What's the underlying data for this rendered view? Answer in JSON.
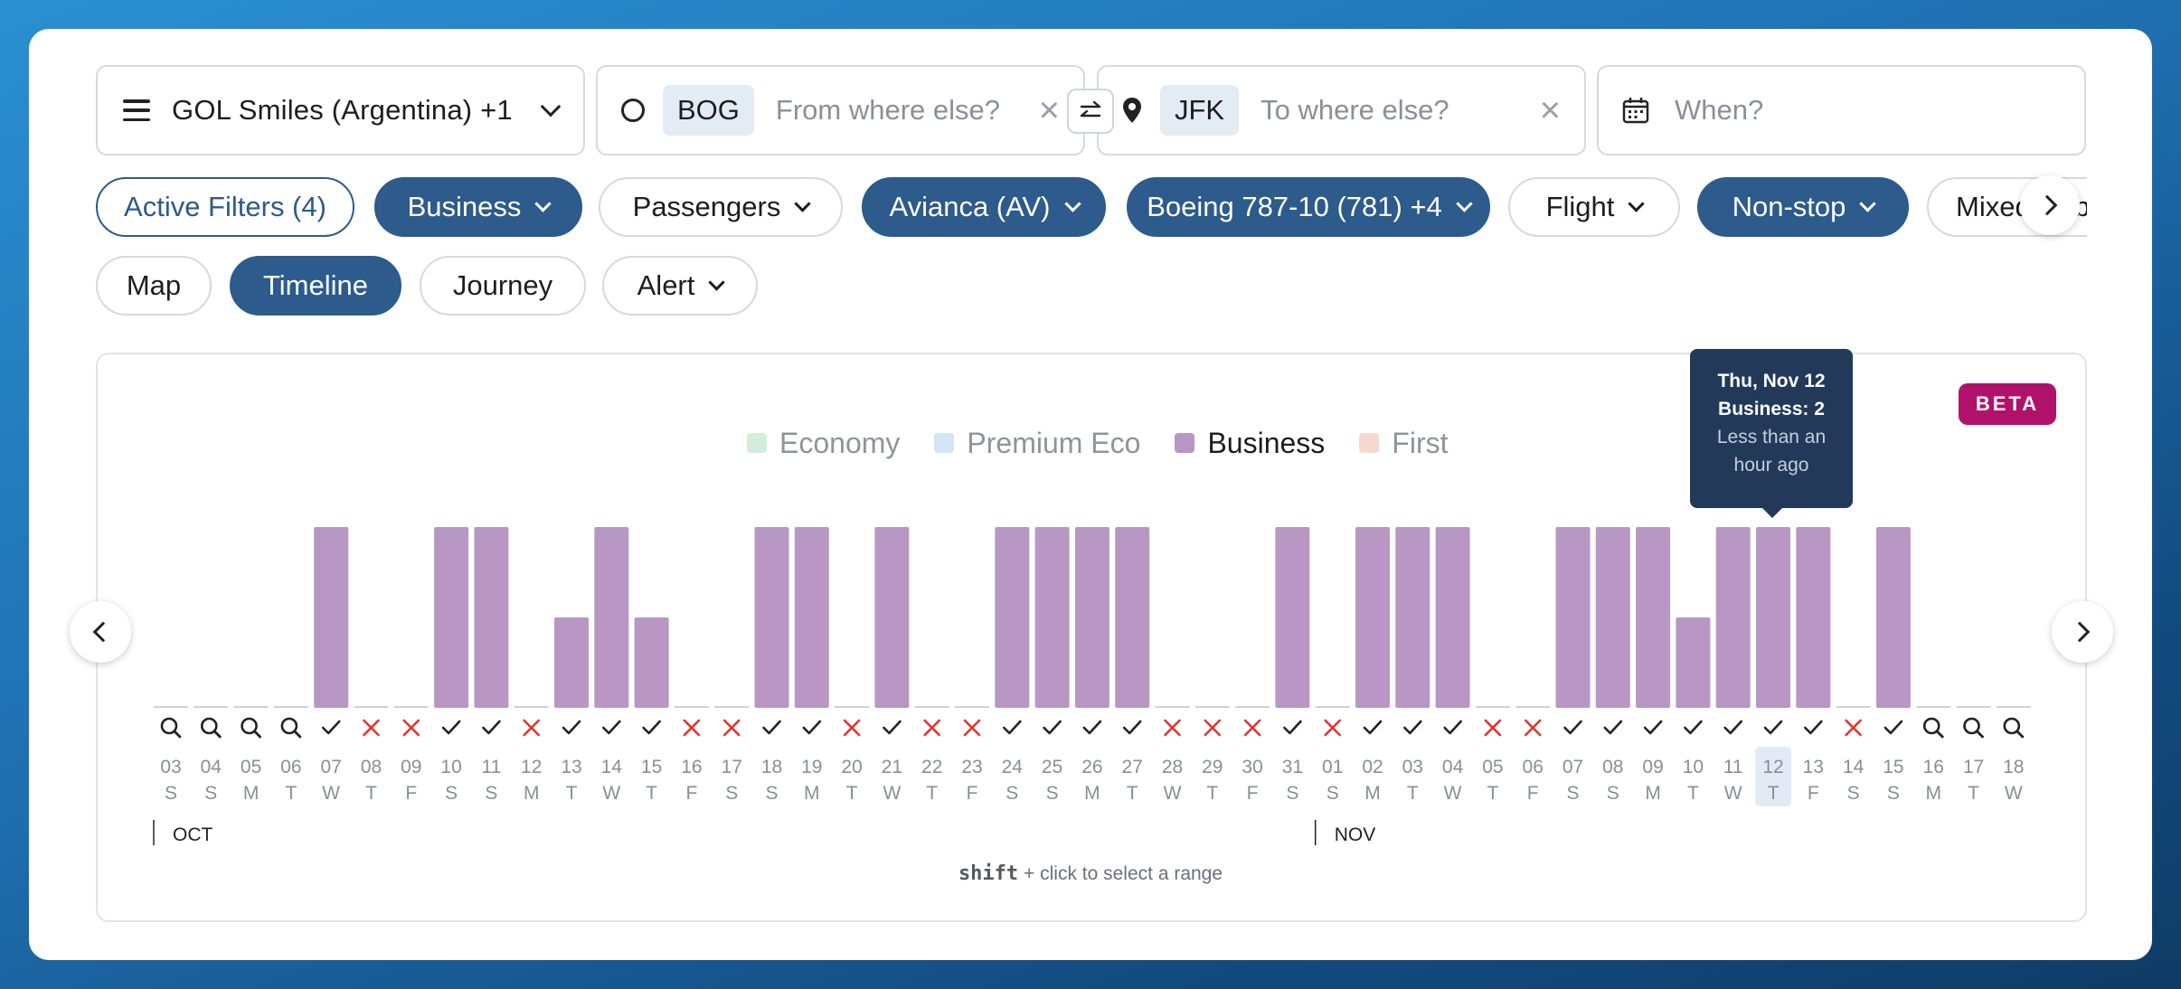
{
  "search": {
    "program_label": "GOL Smiles (Argentina) +1",
    "from_code": "BOG",
    "from_placeholder": "From where else?",
    "to_code": "JFK",
    "to_placeholder": "To where else?",
    "when_placeholder": "When?"
  },
  "filters": [
    {
      "label": "Active Filters (4)",
      "style": "outline",
      "dropdown": false
    },
    {
      "label": "Business",
      "style": "dark",
      "dropdown": true
    },
    {
      "label": "Passengers",
      "style": "plain",
      "dropdown": true
    },
    {
      "label": "Avianca (AV)",
      "style": "dark",
      "dropdown": true
    },
    {
      "label": "Boeing 787-10 (781) +4",
      "style": "dark",
      "dropdown": true
    },
    {
      "label": "Flight",
      "style": "plain",
      "dropdown": true
    },
    {
      "label": "Non-stop",
      "style": "dark",
      "dropdown": true
    },
    {
      "label": "Mixed Cabin",
      "style": "plain",
      "dropdown": true
    }
  ],
  "views": [
    {
      "label": "Map",
      "active": false,
      "dropdown": false
    },
    {
      "label": "Timeline",
      "active": true,
      "dropdown": false
    },
    {
      "label": "Journey",
      "active": false,
      "dropdown": false
    },
    {
      "label": "Alert",
      "active": false,
      "dropdown": true
    }
  ],
  "beta_badge": "BETA",
  "legend": [
    {
      "label": "Economy",
      "color": "#d3ecdc",
      "active": false
    },
    {
      "label": "Premium Eco",
      "color": "#d3e6f3",
      "active": false
    },
    {
      "label": "Business",
      "color": "#b897c4",
      "active": true
    },
    {
      "label": "First",
      "color": "#f6d8d1",
      "active": false
    }
  ],
  "tooltip": {
    "date": "Thu, Nov 12",
    "value": "Business: 2",
    "updated": "Less than an hour ago"
  },
  "chart_data": {
    "type": "bar",
    "series": [
      {
        "name": "Business",
        "color": "#b897c4"
      }
    ],
    "months": [
      {
        "label": "OCT",
        "start_index": 0
      },
      {
        "label": "NOV",
        "start_index": 29
      }
    ],
    "highlight_index": 40,
    "days": [
      {
        "d": "03",
        "w": "S",
        "v": 0,
        "s": "search"
      },
      {
        "d": "04",
        "w": "S",
        "v": 0,
        "s": "search"
      },
      {
        "d": "05",
        "w": "M",
        "v": 0,
        "s": "search"
      },
      {
        "d": "06",
        "w": "T",
        "v": 0,
        "s": "search"
      },
      {
        "d": "07",
        "w": "W",
        "v": 2,
        "s": "check"
      },
      {
        "d": "08",
        "w": "T",
        "v": 0,
        "s": "cross"
      },
      {
        "d": "09",
        "w": "F",
        "v": 0,
        "s": "cross"
      },
      {
        "d": "10",
        "w": "S",
        "v": 2,
        "s": "check"
      },
      {
        "d": "11",
        "w": "S",
        "v": 2,
        "s": "check"
      },
      {
        "d": "12",
        "w": "M",
        "v": 0,
        "s": "cross"
      },
      {
        "d": "13",
        "w": "T",
        "v": 1,
        "s": "check"
      },
      {
        "d": "14",
        "w": "W",
        "v": 2,
        "s": "check"
      },
      {
        "d": "15",
        "w": "T",
        "v": 1,
        "s": "check"
      },
      {
        "d": "16",
        "w": "F",
        "v": 0,
        "s": "cross"
      },
      {
        "d": "17",
        "w": "S",
        "v": 0,
        "s": "cross"
      },
      {
        "d": "18",
        "w": "S",
        "v": 2,
        "s": "check"
      },
      {
        "d": "19",
        "w": "M",
        "v": 2,
        "s": "check"
      },
      {
        "d": "20",
        "w": "T",
        "v": 0,
        "s": "cross"
      },
      {
        "d": "21",
        "w": "W",
        "v": 2,
        "s": "check"
      },
      {
        "d": "22",
        "w": "T",
        "v": 0,
        "s": "cross"
      },
      {
        "d": "23",
        "w": "F",
        "v": 0,
        "s": "cross"
      },
      {
        "d": "24",
        "w": "S",
        "v": 2,
        "s": "check"
      },
      {
        "d": "25",
        "w": "S",
        "v": 2,
        "s": "check"
      },
      {
        "d": "26",
        "w": "M",
        "v": 2,
        "s": "check"
      },
      {
        "d": "27",
        "w": "T",
        "v": 2,
        "s": "check"
      },
      {
        "d": "28",
        "w": "W",
        "v": 0,
        "s": "cross"
      },
      {
        "d": "29",
        "w": "T",
        "v": 0,
        "s": "cross"
      },
      {
        "d": "30",
        "w": "F",
        "v": 0,
        "s": "cross"
      },
      {
        "d": "31",
        "w": "S",
        "v": 2,
        "s": "check"
      },
      {
        "d": "01",
        "w": "S",
        "v": 0,
        "s": "cross"
      },
      {
        "d": "02",
        "w": "M",
        "v": 2,
        "s": "check"
      },
      {
        "d": "03",
        "w": "T",
        "v": 2,
        "s": "check"
      },
      {
        "d": "04",
        "w": "W",
        "v": 2,
        "s": "check"
      },
      {
        "d": "05",
        "w": "T",
        "v": 0,
        "s": "cross"
      },
      {
        "d": "06",
        "w": "F",
        "v": 0,
        "s": "cross"
      },
      {
        "d": "07",
        "w": "S",
        "v": 2,
        "s": "check"
      },
      {
        "d": "08",
        "w": "S",
        "v": 2,
        "s": "check"
      },
      {
        "d": "09",
        "w": "M",
        "v": 2,
        "s": "check"
      },
      {
        "d": "10",
        "w": "T",
        "v": 1,
        "s": "check"
      },
      {
        "d": "11",
        "w": "W",
        "v": 2,
        "s": "check"
      },
      {
        "d": "12",
        "w": "T",
        "v": 2,
        "s": "check"
      },
      {
        "d": "13",
        "w": "F",
        "v": 2,
        "s": "check"
      },
      {
        "d": "14",
        "w": "S",
        "v": 0,
        "s": "cross"
      },
      {
        "d": "15",
        "w": "S",
        "v": 2,
        "s": "check"
      },
      {
        "d": "16",
        "w": "M",
        "v": 0,
        "s": "search"
      },
      {
        "d": "17",
        "w": "T",
        "v": 0,
        "s": "search"
      },
      {
        "d": "18",
        "w": "W",
        "v": 0,
        "s": "search"
      }
    ]
  },
  "hint": {
    "key": "shift",
    "text": "+ click to select a range"
  }
}
